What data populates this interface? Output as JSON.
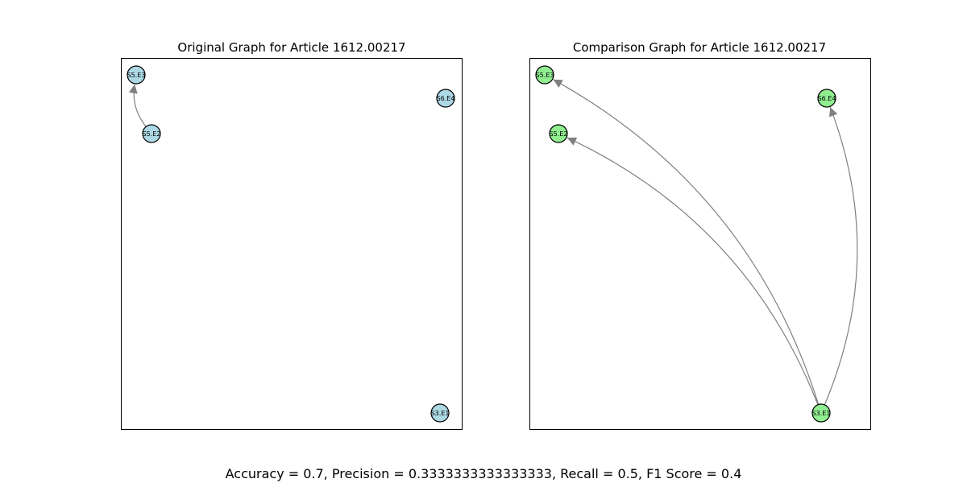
{
  "figure": {
    "metrics_text": "Accuracy = 0.7, Precision = 0.3333333333333333, Recall = 0.5, F1 Score = 0.4"
  },
  "colors": {
    "original_node": "#add8e6",
    "comparison_node": "#90ee90",
    "edge": "#808080",
    "node_border": "#000000"
  },
  "panels": [
    {
      "id": "original",
      "title": "Original Graph for Article 1612.00217",
      "nodes": [
        "S5.E3",
        "S6.E4",
        "S5.E2",
        "S3.E1"
      ],
      "edges": [
        {
          "from": "S5.E2",
          "to": "S5.E3"
        }
      ]
    },
    {
      "id": "comparison",
      "title": "Comparison Graph for Article 1612.00217",
      "nodes": [
        "S5.E3",
        "S6.E4",
        "S5.E2",
        "S3.E1"
      ],
      "edges": [
        {
          "from": "S3.E1",
          "to": "S5.E3"
        },
        {
          "from": "S3.E1",
          "to": "S5.E2"
        },
        {
          "from": "S3.E1",
          "to": "S6.E4"
        }
      ]
    }
  ]
}
